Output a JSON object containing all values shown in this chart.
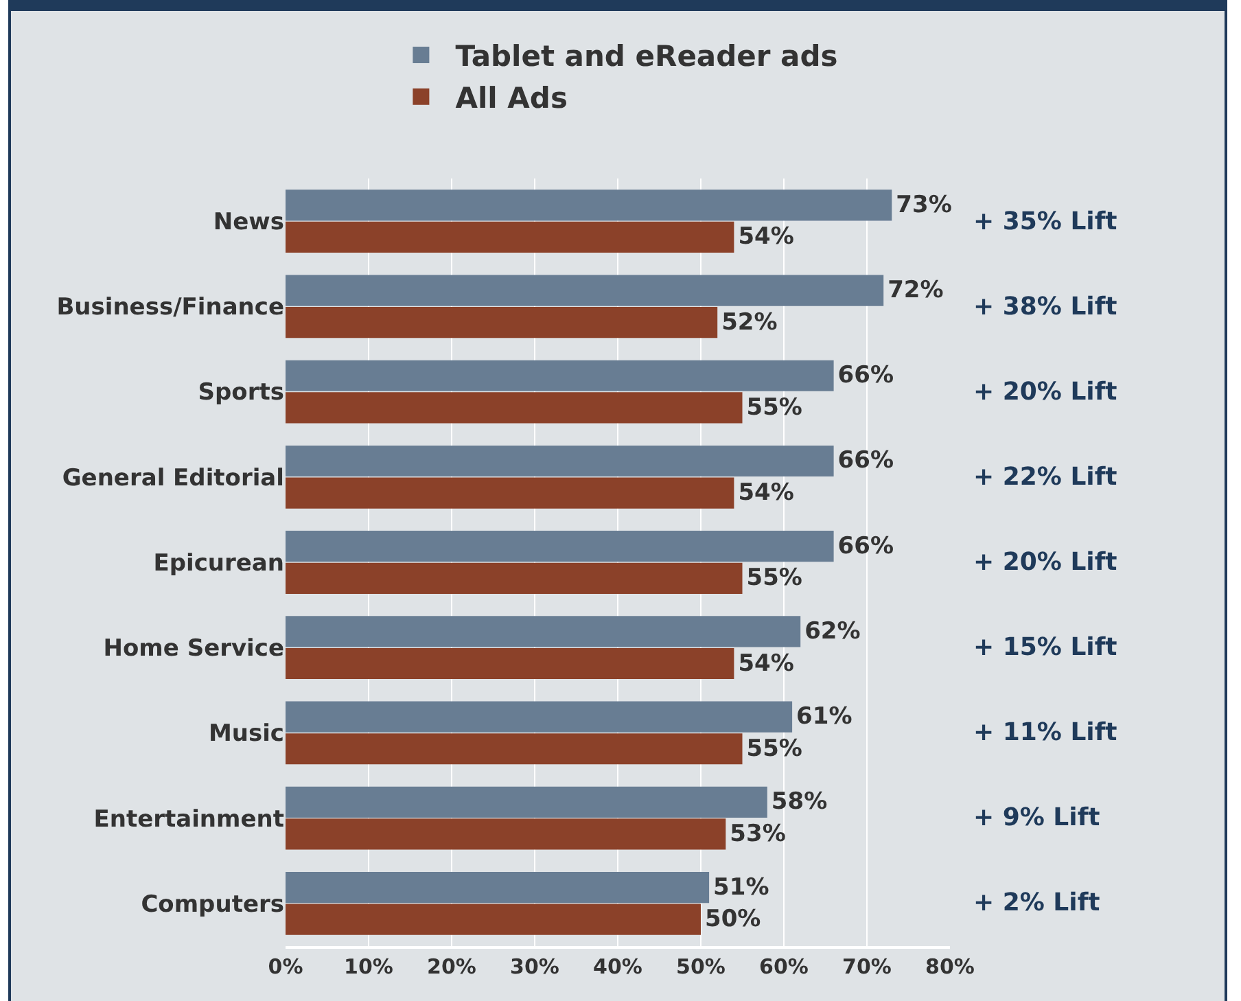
{
  "chart_data": {
    "type": "bar",
    "orientation": "horizontal",
    "categories": [
      "News",
      "Business/Finance",
      "Sports",
      "General Editorial",
      "Epicurean",
      "Home Service",
      "Music",
      "Entertainment",
      "Computers"
    ],
    "series": [
      {
        "name": "Tablet and eReader ads",
        "color": "#687d93",
        "values": [
          73,
          72,
          66,
          66,
          66,
          62,
          61,
          58,
          51
        ],
        "value_labels": [
          "73%",
          "72%",
          "66%",
          "66%",
          "66%",
          "62%",
          "61%",
          "58%",
          "51%"
        ]
      },
      {
        "name": "All Ads",
        "color": "#8b4129",
        "values": [
          54,
          52,
          55,
          54,
          55,
          54,
          55,
          53,
          50
        ],
        "value_labels": [
          "54%",
          "52%",
          "55%",
          "54%",
          "55%",
          "54%",
          "55%",
          "53%",
          "50%"
        ]
      }
    ],
    "xlim": [
      0,
      80
    ],
    "xticks": [
      {
        "value": 0,
        "label": "0%"
      },
      {
        "value": 10,
        "label": "10%"
      },
      {
        "value": 20,
        "label": "20%"
      },
      {
        "value": 30,
        "label": "30%"
      },
      {
        "value": 40,
        "label": "40%"
      },
      {
        "value": 50,
        "label": "50%"
      },
      {
        "value": 60,
        "label": "60%"
      },
      {
        "value": 70,
        "label": "70%"
      },
      {
        "value": 80,
        "label": "80%"
      }
    ],
    "grid": "x",
    "legend": "top",
    "annotations": [
      "+ 35% Lift",
      "+ 38% Lift",
      "+ 20% Lift",
      "+ 22% Lift",
      "+ 20% Lift",
      "+ 15% Lift",
      "+ 11% Lift",
      "+ 9% Lift",
      "+ 2% Lift"
    ]
  }
}
